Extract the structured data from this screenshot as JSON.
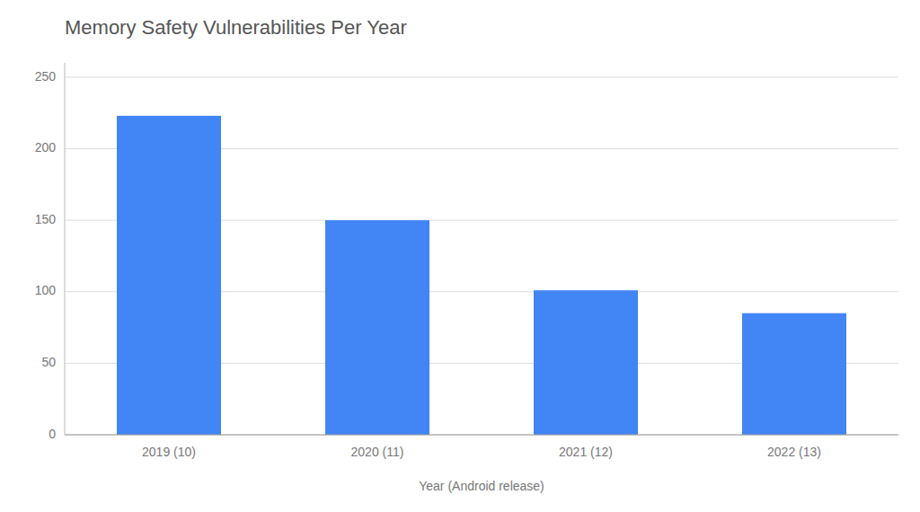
{
  "chart_data": {
    "type": "bar",
    "title": "Memory Safety Vulnerabilities Per Year",
    "xlabel": "Year (Android release)",
    "categories": [
      "2019 (10)",
      "2020 (11)",
      "2021 (12)",
      "2022 (13)"
    ],
    "values": [
      223,
      150,
      101,
      85
    ],
    "color": "#4285F4",
    "ylim": [
      0,
      260
    ],
    "yticks": [
      0,
      50,
      100,
      150,
      200,
      250
    ],
    "grid": true
  }
}
